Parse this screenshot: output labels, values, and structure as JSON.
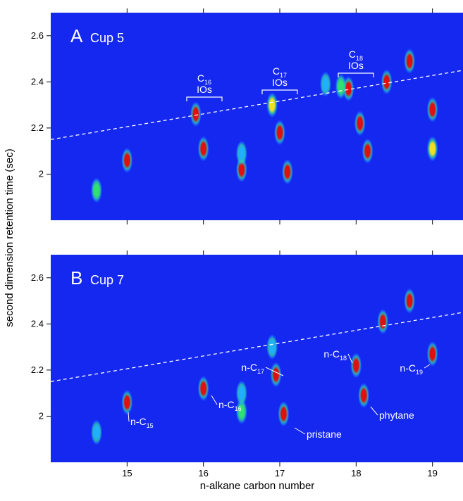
{
  "chart_data": [
    {
      "type": "scatter",
      "panel": "A",
      "title": "Cup 5",
      "ylabel": "second dimension retention time (sec)",
      "xlim": [
        14,
        19.4
      ],
      "xticks": [
        15,
        16,
        17,
        18,
        19
      ],
      "ylim": [
        1.8,
        2.7
      ],
      "yticks": [
        2,
        2.2,
        2.4,
        2.6
      ],
      "background": "#1428f0",
      "peaks": {
        "x": [
          14.6,
          15.0,
          16.0,
          15.9,
          16.5,
          16.5,
          17.0,
          17.1,
          16.9,
          17.9,
          17.8,
          18.05,
          18.15,
          18.4,
          18.7,
          19.0,
          19.0,
          17.6
        ],
        "y": [
          1.93,
          2.06,
          2.11,
          2.26,
          2.02,
          2.09,
          2.18,
          2.01,
          2.3,
          2.37,
          2.38,
          2.22,
          2.1,
          2.4,
          2.49,
          2.28,
          2.11,
          2.39
        ],
        "colors": [
          "#30e070",
          "#e01010",
          "#e01010",
          "#e01010",
          "#e01010",
          "#20b0ff",
          "#e01010",
          "#e01010",
          "#f0e020",
          "#e01010",
          "#30e070",
          "#e01010",
          "#e01010",
          "#e01010",
          "#e01010",
          "#e01010",
          "#f0e020",
          "#20b0ff"
        ]
      },
      "reference_line": {
        "x": [
          14,
          19.4
        ],
        "y": [
          2.15,
          2.45
        ]
      },
      "brackets": [
        {
          "text": "C",
          "sub": "16",
          "line2": "IOs"
        },
        {
          "text": "C",
          "sub": "17",
          "line2": "IOs"
        },
        {
          "text": "C",
          "sub": "18",
          "line2": "IOs"
        }
      ]
    },
    {
      "type": "scatter",
      "panel": "B",
      "title": "Cup 7",
      "xlabel": "n-alkane carbon number",
      "xlim": [
        14,
        19.4
      ],
      "xticks": [
        15,
        16,
        17,
        18,
        19
      ],
      "ylim": [
        1.8,
        2.7
      ],
      "yticks": [
        2,
        2.2,
        2.4,
        2.6
      ],
      "background": "#1428f0",
      "peaks": {
        "x": [
          14.6,
          15.0,
          16.0,
          16.5,
          16.5,
          16.95,
          17.05,
          18.0,
          18.1,
          18.35,
          18.7,
          19.0,
          16.9
        ],
        "y": [
          1.93,
          2.06,
          2.12,
          2.02,
          2.1,
          2.18,
          2.01,
          2.22,
          2.09,
          2.41,
          2.5,
          2.27,
          2.3
        ],
        "colors": [
          "#20b0ff",
          "#e01010",
          "#e01010",
          "#30e070",
          "#20b0ff",
          "#e01010",
          "#e01010",
          "#e01010",
          "#e01010",
          "#e01010",
          "#e01010",
          "#e01010",
          "#20b0ff"
        ]
      },
      "reference_line": {
        "x": [
          14,
          19.4
        ],
        "y": [
          2.15,
          2.45
        ]
      },
      "annotations": [
        {
          "text": "n-C",
          "sub": "15"
        },
        {
          "text": "n-C",
          "sub": "16"
        },
        {
          "text": "n-C",
          "sub": "17"
        },
        {
          "text": "pristane"
        },
        {
          "text": "n-C",
          "sub": "18"
        },
        {
          "text": "phytane"
        },
        {
          "text": "n-C",
          "sub": "19"
        }
      ]
    }
  ]
}
